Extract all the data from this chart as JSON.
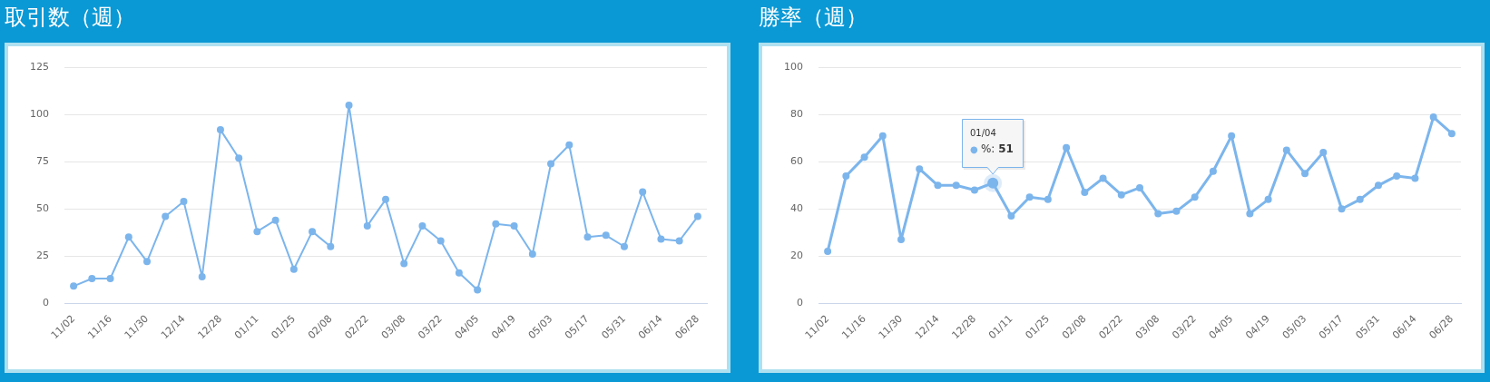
{
  "chart_data": [
    {
      "type": "line",
      "title": "取引数（週）",
      "categories": [
        "11/02",
        null,
        "11/16",
        null,
        "11/30",
        null,
        "12/14",
        null,
        "12/28",
        null,
        "01/11",
        null,
        "01/25",
        null,
        "02/08",
        null,
        "02/22",
        null,
        "03/08",
        null,
        "03/22",
        null,
        "04/05",
        null,
        "04/19",
        null,
        "05/03",
        null,
        "05/17",
        null,
        "05/31",
        null,
        "06/14",
        null,
        "06/28"
      ],
      "series": [
        {
          "color": "#7cb5ec",
          "values": [
            9,
            13,
            13,
            35,
            22,
            46,
            54,
            14,
            92,
            77,
            38,
            44,
            18,
            38,
            30,
            105,
            41,
            55,
            21,
            41,
            33,
            16,
            7,
            42,
            41,
            26,
            74,
            84,
            35,
            36,
            30,
            59,
            34,
            33,
            46
          ]
        }
      ],
      "ylim": [
        0,
        125
      ],
      "yticks": [
        0,
        25,
        50,
        75,
        100,
        125
      ],
      "grid": "y",
      "legend": false,
      "marker": "circle",
      "line_style": "solid"
    },
    {
      "type": "line",
      "title": "勝率（週）",
      "categories": [
        "11/02",
        null,
        "11/16",
        null,
        "11/30",
        null,
        "12/14",
        null,
        "12/28",
        null,
        "01/11",
        null,
        "01/25",
        null,
        "02/08",
        null,
        "02/22",
        null,
        "03/08",
        null,
        "03/22",
        null,
        "04/05",
        null,
        "04/19",
        null,
        "05/03",
        null,
        "05/17",
        null,
        "05/31",
        null,
        "06/14",
        null,
        "06/28"
      ],
      "series": [
        {
          "color": "#7cb5ec",
          "values": [
            22,
            54,
            62,
            71,
            27,
            57,
            50,
            50,
            48,
            51,
            37,
            45,
            44,
            66,
            47,
            53,
            46,
            49,
            38,
            39,
            45,
            56,
            71,
            38,
            44,
            65,
            55,
            64,
            40,
            44,
            50,
            54,
            53,
            79,
            72
          ]
        }
      ],
      "ylim": [
        0,
        100
      ],
      "yticks": [
        0,
        20,
        40,
        60,
        80,
        100
      ],
      "annotations": [
        {
          "text": "01/04\n● %: 51",
          "y": 51
        }
      ],
      "grid": "y",
      "legend": false,
      "marker": "circle",
      "line_style": "solid"
    }
  ]
}
